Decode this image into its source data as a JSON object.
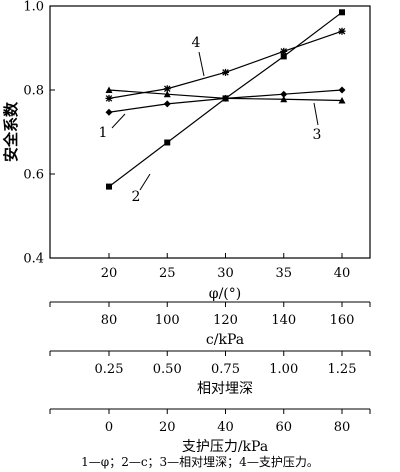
{
  "chart_data": {
    "type": "line",
    "ylabel": "安全系数",
    "ylim": [
      0.4,
      1.0
    ],
    "yticks": [
      0.4,
      0.6,
      0.8,
      1.0
    ],
    "xlabel": "φ/(°)",
    "x": [
      20,
      25,
      30,
      35,
      40
    ],
    "extra_axes": [
      {
        "label": "c/kPa",
        "ticks": [
          "80",
          "100",
          "120",
          "140",
          "160"
        ]
      },
      {
        "label": "相对埋深",
        "ticks": [
          "0.25",
          "0.50",
          "0.75",
          "1.00",
          "1.25"
        ]
      },
      {
        "label": "支护压力/kPa",
        "ticks": [
          "0",
          "20",
          "40",
          "60",
          "80"
        ]
      }
    ],
    "series": [
      {
        "name": "1",
        "marker": "diamond",
        "values": [
          0.747,
          0.767,
          0.78,
          0.79,
          0.8
        ]
      },
      {
        "name": "2",
        "marker": "square",
        "values": [
          0.57,
          0.675,
          0.78,
          0.88,
          0.985
        ]
      },
      {
        "name": "3",
        "marker": "triangle",
        "values": [
          0.8,
          0.79,
          0.78,
          0.778,
          0.775
        ]
      },
      {
        "name": "4",
        "marker": "asterisk",
        "values": [
          0.78,
          0.803,
          0.842,
          0.892,
          0.94
        ]
      }
    ],
    "caption": "1—φ；2—c；3—相对埋深；4—支护压力。",
    "grid": false,
    "legend": "none"
  }
}
